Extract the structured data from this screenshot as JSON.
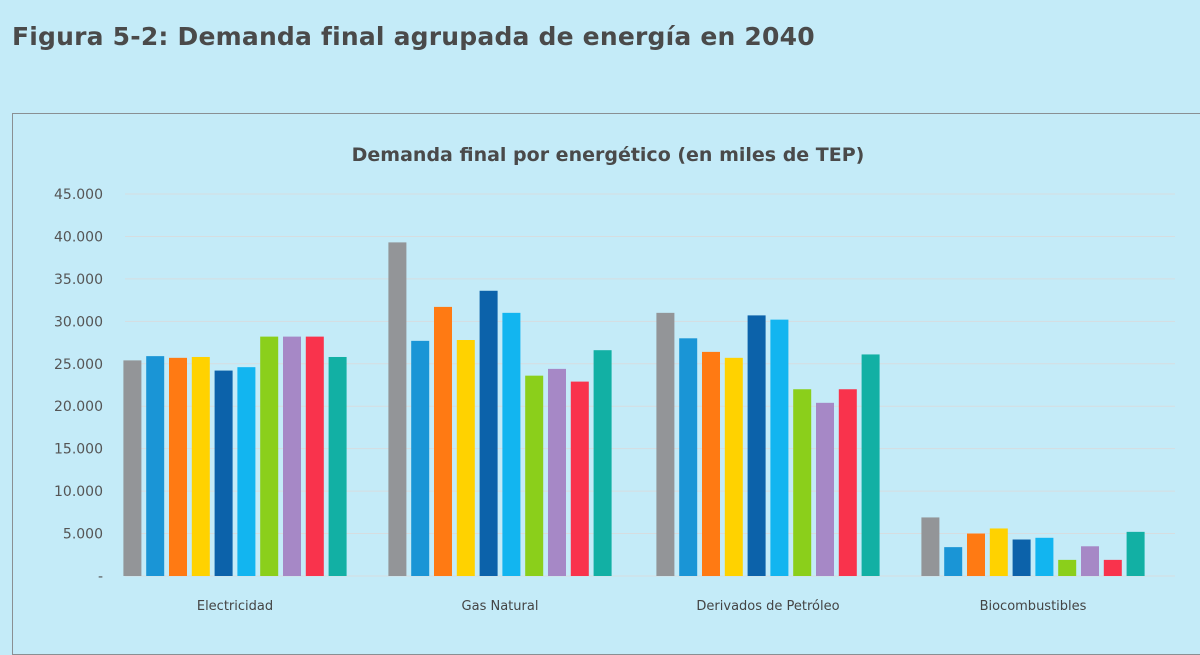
{
  "figure": {
    "title": "Figura 5-2: Demanda final agrupada de energía en 2040"
  },
  "chart_data": {
    "type": "bar",
    "title": "Demanda final por energético (en miles de TEP)",
    "xlabel": "",
    "ylabel": "",
    "ylim": [
      0,
      45000
    ],
    "y_ticks": [
      "-",
      "5.000",
      "10.000",
      "15.000",
      "20.000",
      "25.000",
      "30.000",
      "35.000",
      "40.000",
      "45.000"
    ],
    "y_tick_values": [
      0,
      5000,
      10000,
      15000,
      20000,
      25000,
      30000,
      35000,
      40000,
      45000
    ],
    "grid": true,
    "legend": "none",
    "categories": [
      "Electricidad",
      "Gas Natural",
      "Derivados de Petróleo",
      "Biocombustibles"
    ],
    "series": [
      {
        "color": "#939598",
        "values": [
          25400,
          39300,
          31000,
          6900
        ]
      },
      {
        "color": "#1a95d6",
        "values": [
          25900,
          27700,
          28000,
          3400
        ]
      },
      {
        "color": "#ff7a13",
        "values": [
          25700,
          31700,
          26400,
          5000
        ]
      },
      {
        "color": "#ffd200",
        "values": [
          25800,
          27800,
          25700,
          5600
        ]
      },
      {
        "color": "#0c62aa",
        "values": [
          24200,
          33600,
          30700,
          4300
        ]
      },
      {
        "color": "#12b5f0",
        "values": [
          24600,
          31000,
          30200,
          4500
        ]
      },
      {
        "color": "#8bcf1b",
        "values": [
          28200,
          23600,
          22000,
          1900
        ]
      },
      {
        "color": "#a688c6",
        "values": [
          28200,
          24400,
          20400,
          3500
        ]
      },
      {
        "color": "#f9334c",
        "values": [
          28200,
          22900,
          22000,
          1900
        ]
      },
      {
        "color": "#12b0a4",
        "values": [
          25800,
          26600,
          26100,
          5200
        ]
      }
    ]
  }
}
